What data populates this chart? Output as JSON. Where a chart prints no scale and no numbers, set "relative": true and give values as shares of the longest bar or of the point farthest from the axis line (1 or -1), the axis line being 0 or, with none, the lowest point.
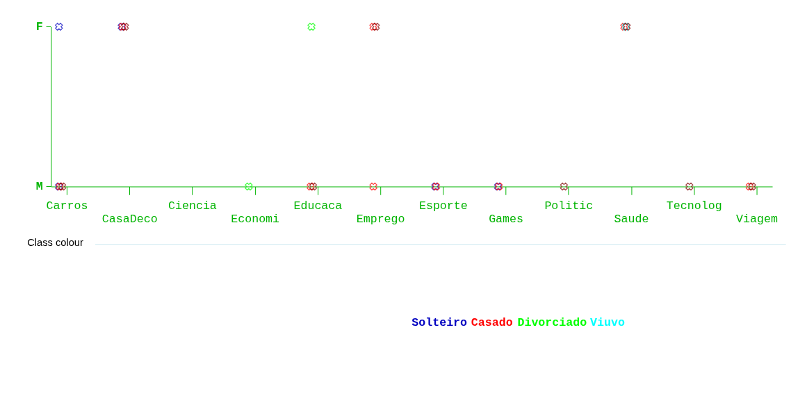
{
  "chart_data": {
    "type": "scatter",
    "relative": true,
    "categories": [
      "Carros",
      "CasaDeco",
      "Ciencia",
      "Economi",
      "Educaca",
      "Emprego",
      "Esporte",
      "Games",
      "Politic",
      "Saude",
      "Tecnolog",
      "Viagem"
    ],
    "annotations": [
      "F",
      "M"
    ],
    "marker": "cross",
    "legend": "bottom",
    "legend_title": "Class colour",
    "series": [
      {
        "name": "Solteiro",
        "color": "#0000c0",
        "x": [
          "Carros",
          "Carros",
          "CasaDeco",
          "Esporte",
          "Games"
        ],
        "values": [
          1,
          0,
          1,
          0,
          0
        ]
      },
      {
        "name": "Casado",
        "color": "#ff0000",
        "x": [
          "Carros",
          "CasaDeco",
          "Educaca",
          "Emprego",
          "Emprego",
          "Esporte",
          "Games",
          "Saude",
          "Viagem"
        ],
        "values": [
          0,
          1,
          0,
          1,
          0,
          0,
          0,
          1,
          0
        ]
      },
      {
        "name": "Divorciado",
        "color": "#00ff00",
        "x": [
          "Economi",
          "Educaca"
        ],
        "values": [
          0,
          1
        ]
      },
      {
        "name": "Viuvo",
        "color": "#00ffff",
        "x": [
          "Saude"
        ],
        "values": [
          1
        ]
      },
      {
        "color": "#800000",
        "x": [
          "Carros",
          "CasaDeco",
          "Educaca",
          "Emprego",
          "Politic",
          "Saude",
          "Tecnolog",
          "Viagem"
        ],
        "values": [
          0,
          1,
          0,
          1,
          0,
          1,
          0,
          0
        ]
      }
    ]
  }
}
